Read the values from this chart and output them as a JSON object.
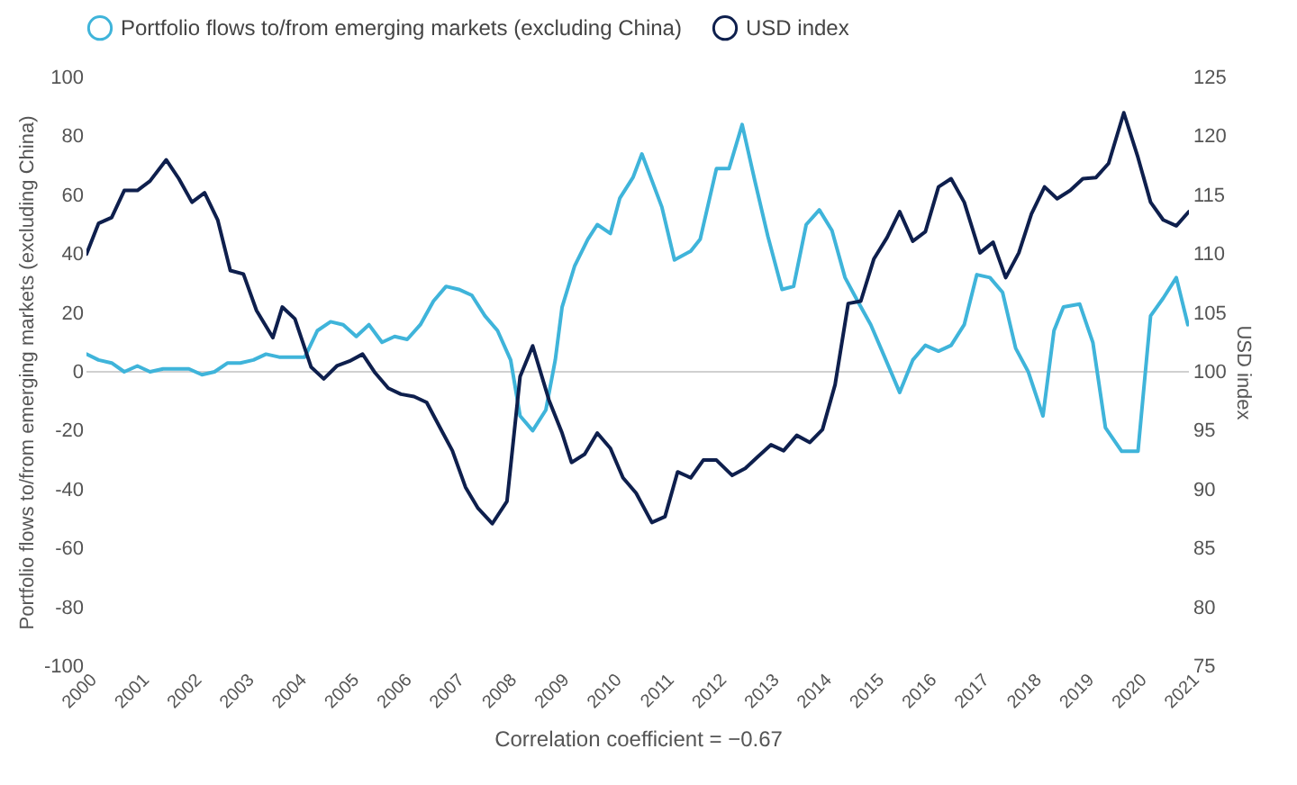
{
  "chart_data": {
    "type": "line",
    "xlabel": "Correlation coefficient = −0.67",
    "ylabel": "Portfolio flows to/from emerging markets (excluding China)",
    "y2label": "USD index",
    "xlim": [
      2000,
      2021
    ],
    "xticks": [
      2000,
      2001,
      2002,
      2003,
      2004,
      2005,
      2006,
      2007,
      2008,
      2009,
      2010,
      2011,
      2012,
      2013,
      2014,
      2015,
      2016,
      2017,
      2018,
      2019,
      2020,
      2021
    ],
    "ylim": [
      -100,
      100
    ],
    "yticks": [
      -100,
      -80,
      -60,
      -40,
      -20,
      0,
      20,
      40,
      60,
      80,
      100
    ],
    "y2lim": [
      75,
      125
    ],
    "y2ticks": [
      75,
      80,
      85,
      90,
      95,
      100,
      105,
      110,
      115,
      120,
      125
    ],
    "grid": false,
    "legend": "top",
    "ref_lines": [
      {
        "axis": "y",
        "value": 0,
        "color": "#d0d0d0"
      }
    ],
    "series": [
      {
        "name": "Portfolio flows to/from emerging markets (excluding China)",
        "color": "#3fb4da",
        "x": [
          2000.0,
          2000.23,
          2000.48,
          2000.72,
          2000.97,
          2001.21,
          2001.46,
          2001.7,
          2001.95,
          2002.2,
          2002.44,
          2002.69,
          2002.93,
          2003.18,
          2003.42,
          2003.67,
          2003.91,
          2004.16,
          2004.4,
          2004.65,
          2004.89,
          2005.14,
          2005.38,
          2005.63,
          2005.87,
          2006.11,
          2006.36,
          2006.61,
          2006.85,
          2007.09,
          2007.34,
          2007.59,
          2007.83,
          2008.08,
          2008.26,
          2008.5,
          2008.75,
          2008.93,
          2009.06,
          2009.3,
          2009.55,
          2009.73,
          2009.98,
          2010.16,
          2010.41,
          2010.58,
          2010.96,
          2011.2,
          2011.51,
          2011.69,
          2012.0,
          2012.24,
          2012.49,
          2012.73,
          2012.98,
          2013.25,
          2013.47,
          2013.71,
          2013.96,
          2014.2,
          2014.45,
          2014.69,
          2014.94,
          2015.18,
          2015.49,
          2015.74,
          2015.98,
          2016.23,
          2016.47,
          2016.72,
          2016.96,
          2017.21,
          2017.45,
          2017.7,
          2017.94,
          2018.22,
          2018.43,
          2018.61,
          2018.92,
          2019.17,
          2019.41,
          2019.72,
          2020.03,
          2020.27,
          2020.51,
          2020.76,
          2020.98
        ],
        "values": [
          6,
          4,
          3,
          0,
          2,
          0,
          1,
          1,
          1,
          -1,
          0,
          3,
          3,
          4,
          6,
          5,
          5,
          5,
          14,
          17,
          16,
          12,
          16,
          10,
          12,
          11,
          16,
          24,
          29,
          28,
          26,
          19,
          14,
          4,
          -15,
          -20,
          -13,
          4,
          22,
          36,
          45,
          50,
          47,
          59,
          66,
          74,
          56,
          38,
          41,
          45,
          69,
          69,
          84,
          65,
          46,
          28,
          29,
          50,
          55,
          48,
          32,
          24,
          16,
          6,
          -7,
          4,
          9,
          7,
          9,
          16,
          33,
          32,
          27,
          8,
          0,
          -15,
          14,
          22,
          23,
          10,
          -19,
          -27,
          -27,
          19,
          25,
          32,
          16
        ]
      },
      {
        "name": "USD index",
        "color": "#0e1f4d",
        "axis": "y2",
        "x": [
          2000.0,
          2000.23,
          2000.48,
          2000.72,
          2000.97,
          2001.21,
          2001.52,
          2001.76,
          2002.01,
          2002.25,
          2002.5,
          2002.74,
          2002.99,
          2003.24,
          2003.55,
          2003.73,
          2003.97,
          2004.28,
          2004.52,
          2004.77,
          2005.01,
          2005.26,
          2005.5,
          2005.75,
          2005.99,
          2006.24,
          2006.48,
          2006.73,
          2006.97,
          2007.22,
          2007.46,
          2007.73,
          2008.01,
          2008.26,
          2008.5,
          2008.81,
          2009.06,
          2009.24,
          2009.49,
          2009.73,
          2009.98,
          2010.22,
          2010.47,
          2010.77,
          2011.02,
          2011.26,
          2011.51,
          2011.75,
          2012.0,
          2012.3,
          2012.55,
          2012.79,
          2013.04,
          2013.28,
          2013.53,
          2013.78,
          2014.02,
          2014.26,
          2014.51,
          2014.75,
          2015.0,
          2015.25,
          2015.49,
          2015.74,
          2015.98,
          2016.23,
          2016.47,
          2016.72,
          2017.02,
          2017.27,
          2017.51,
          2017.76,
          2018.0,
          2018.25,
          2018.49,
          2018.74,
          2018.98,
          2019.23,
          2019.47,
          2019.76,
          2020.03,
          2020.27,
          2020.51,
          2020.76,
          2021.0
        ],
        "values": [
          110.0,
          112.6,
          113.1,
          115.4,
          115.4,
          116.2,
          118.0,
          116.4,
          114.4,
          115.2,
          112.9,
          108.6,
          108.3,
          105.2,
          102.9,
          105.5,
          104.5,
          100.4,
          99.4,
          100.5,
          100.9,
          101.5,
          99.9,
          98.6,
          98.1,
          97.9,
          97.4,
          95.3,
          93.3,
          90.2,
          88.4,
          87.1,
          89.0,
          99.6,
          102.2,
          97.6,
          94.8,
          92.3,
          93.0,
          94.8,
          93.5,
          91.0,
          89.7,
          87.2,
          87.7,
          91.5,
          91.0,
          92.5,
          92.5,
          91.2,
          91.8,
          92.8,
          93.8,
          93.3,
          94.6,
          94.0,
          95.1,
          98.9,
          105.8,
          106.0,
          109.6,
          111.4,
          113.6,
          111.1,
          111.9,
          115.7,
          116.4,
          114.4,
          110.1,
          111.0,
          108.0,
          110.1,
          113.4,
          115.7,
          114.7,
          115.4,
          116.4,
          116.5,
          117.7,
          122.0,
          118.2,
          114.4,
          112.9,
          112.4,
          113.6
        ]
      }
    ]
  }
}
